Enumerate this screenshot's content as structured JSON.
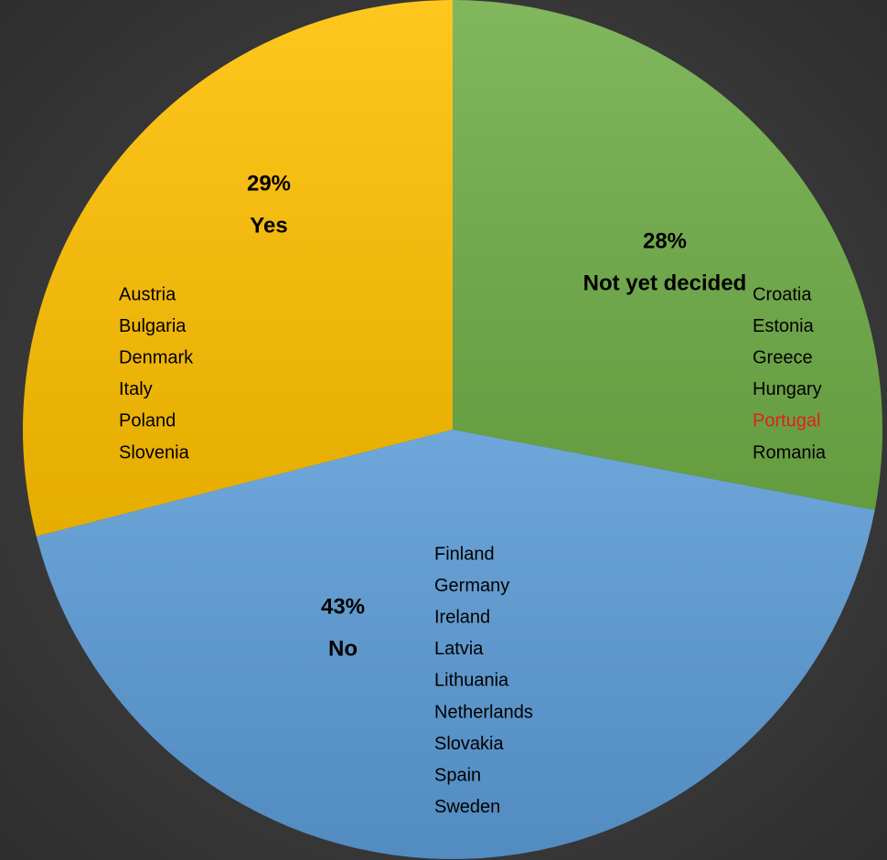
{
  "chart_data": {
    "type": "pie",
    "categories": [
      "Not yet decided",
      "No",
      "Yes"
    ],
    "values": [
      28,
      43,
      29
    ],
    "value_labels": [
      "28%",
      "43%",
      "29%"
    ],
    "colors": [
      "#70ad47",
      "#5b9bd5",
      "#ffc000"
    ],
    "start_angle": 0,
    "direction": "clockwise",
    "countries": [
      [
        "Croatia",
        "Estonia",
        "Greece",
        "Hungary",
        "Portugal",
        "Romania"
      ],
      [
        "Finland",
        "Germany",
        "Ireland",
        "Latvia",
        "Lithuania",
        "Netherlands",
        "Slovakia",
        "Spain",
        "Sweden"
      ],
      [
        "Austria",
        "Bulgaria",
        "Denmark",
        "Italy",
        "Poland",
        "Slovenia"
      ]
    ],
    "highlighted_country": "Portugal",
    "highlight_color": "#e0201b"
  }
}
